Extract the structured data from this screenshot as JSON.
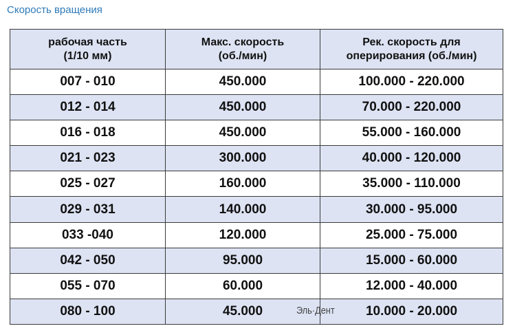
{
  "title": "Скорость вращения",
  "columns": [
    "рабочая часть\n(1/10 мм)",
    "Макс. скорость\n(об./мин)",
    "Рек. скорость для\nоперирования (об./мин)"
  ],
  "rows": [
    [
      "007 - 010",
      "450.000",
      "100.000 - 220.000"
    ],
    [
      "012 - 014",
      "450.000",
      "70.000 - 220.000"
    ],
    [
      "016 - 018",
      "450.000",
      "55.000 - 160.000"
    ],
    [
      "021 - 023",
      "300.000",
      "40.000 - 120.000"
    ],
    [
      "025 - 027",
      "160.000",
      "35.000 - 110.000"
    ],
    [
      "029 - 031",
      "140.000",
      "30.000 - 95.000"
    ],
    [
      "033 -040",
      "120.000",
      "25.000 - 75.000"
    ],
    [
      "042 - 050",
      "95.000",
      "15.000 - 60.000"
    ],
    [
      "055 - 070",
      "60.000",
      "12.000 - 40.000"
    ],
    [
      "080 - 100",
      "45.000",
      "10.000 - 20.000"
    ]
  ],
  "watermark": "Эль·Дент",
  "colors": {
    "title": "#2f7ab8",
    "header_bg": "#dde3f3",
    "alt_row_bg": "#dde3f3"
  }
}
